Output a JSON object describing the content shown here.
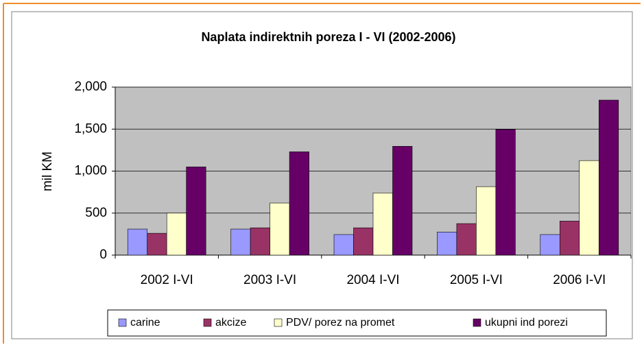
{
  "chart_data": {
    "type": "bar",
    "title": "Naplata indirektnih poreza  I - VI  (2002-2006)",
    "y_label": "mil KM",
    "categories": [
      "2002 I-VI",
      "2003 I-VI",
      "2004 I-VI",
      "2005 I-VI",
      "2006 I-VI"
    ],
    "series": [
      {
        "name": "carine",
        "color": "#9999ff",
        "values": [
          310,
          310,
          245,
          275,
          245
        ]
      },
      {
        "name": "akcize",
        "color": "#993366",
        "values": [
          260,
          325,
          325,
          375,
          405
        ]
      },
      {
        "name": "PDV/ porez na promet",
        "color": "#ffffcc",
        "values": [
          500,
          620,
          740,
          815,
          1125
        ]
      },
      {
        "name": "ukupni ind porezi",
        "color": "#660066",
        "values": [
          1050,
          1230,
          1295,
          1495,
          1845
        ]
      }
    ],
    "ylim": [
      0,
      2000
    ],
    "yticks": [
      0,
      500,
      {
        "value": 1000,
        "label": "1,000"
      },
      {
        "value": 1500,
        "label": "1,500"
      },
      {
        "value": 2000,
        "label": "2,000"
      }
    ],
    "grid": true,
    "legend": "bottom"
  }
}
